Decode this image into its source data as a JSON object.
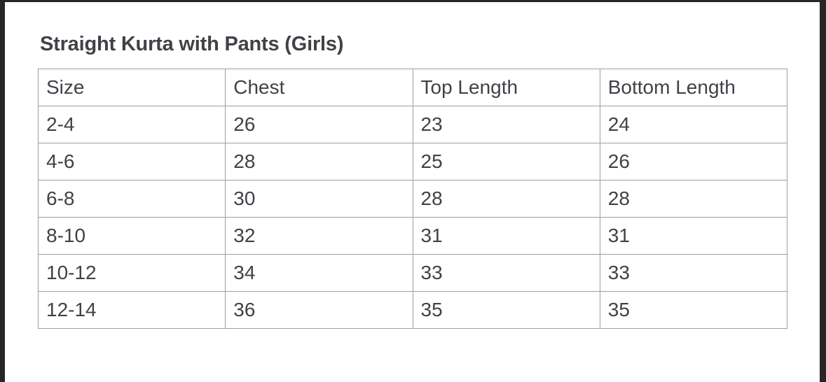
{
  "page": {
    "title": "Straight Kurta with Pants (Girls)"
  },
  "table": {
    "headers": [
      "Size",
      "Chest",
      "Top Length",
      "Bottom Length"
    ],
    "rows": [
      [
        "2-4",
        "26",
        "23",
        "24"
      ],
      [
        "4-6",
        "28",
        "25",
        "26"
      ],
      [
        "6-8",
        "30",
        "28",
        "28"
      ],
      [
        "8-10",
        "32",
        "31",
        "31"
      ],
      [
        "10-12",
        "34",
        "33",
        "33"
      ],
      [
        "12-14",
        "36",
        "35",
        "35"
      ]
    ]
  },
  "colors": {
    "frame": "#262626",
    "page_background": "#ffffff",
    "table_border": "#9e9e9e",
    "text": "#3f4347"
  }
}
